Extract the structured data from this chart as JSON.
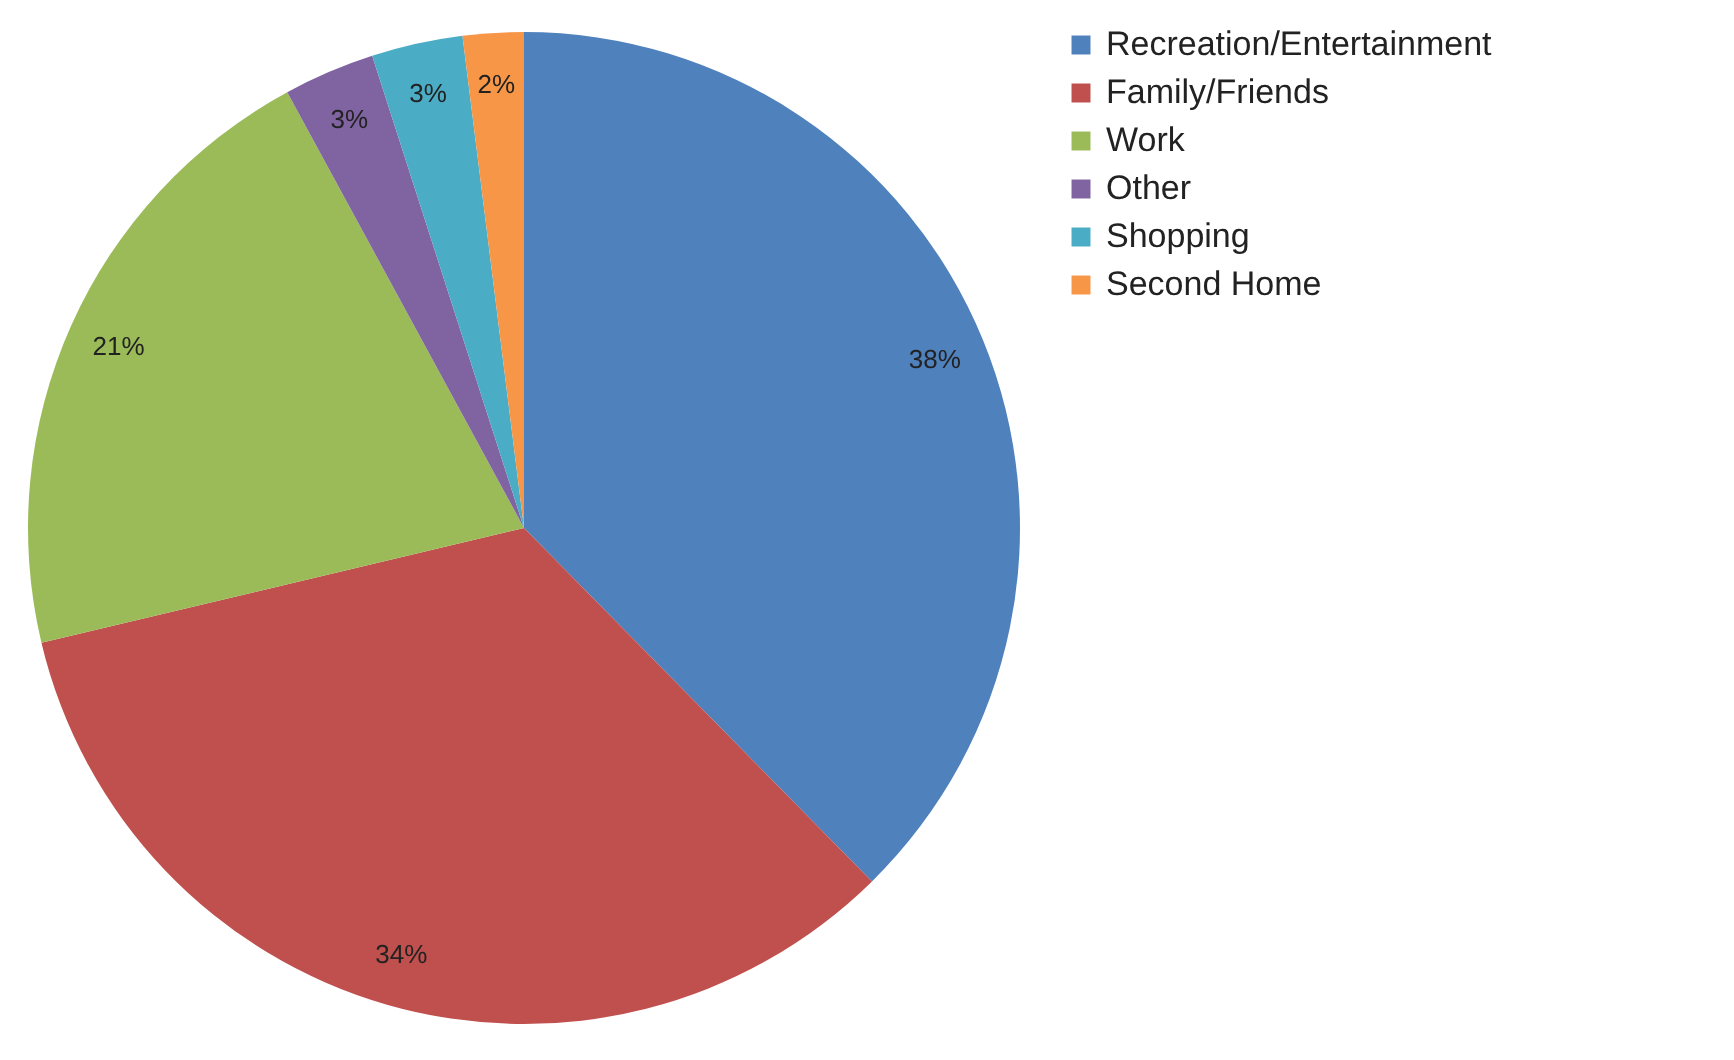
{
  "chart_data": {
    "type": "pie",
    "categories": [
      "Recreation/Entertainment",
      "Family/Friends",
      "Work",
      "Other",
      "Shopping",
      "Second Home"
    ],
    "values": [
      38,
      34,
      21,
      3,
      3,
      2
    ],
    "colors": [
      "#4f81bd",
      "#c0504d",
      "#9bbb59",
      "#8064a2",
      "#4bacc6",
      "#f79646"
    ],
    "value_labels": [
      "38%",
      "34%",
      "21%",
      "3%",
      "3%",
      "2%"
    ],
    "legend": "right"
  }
}
